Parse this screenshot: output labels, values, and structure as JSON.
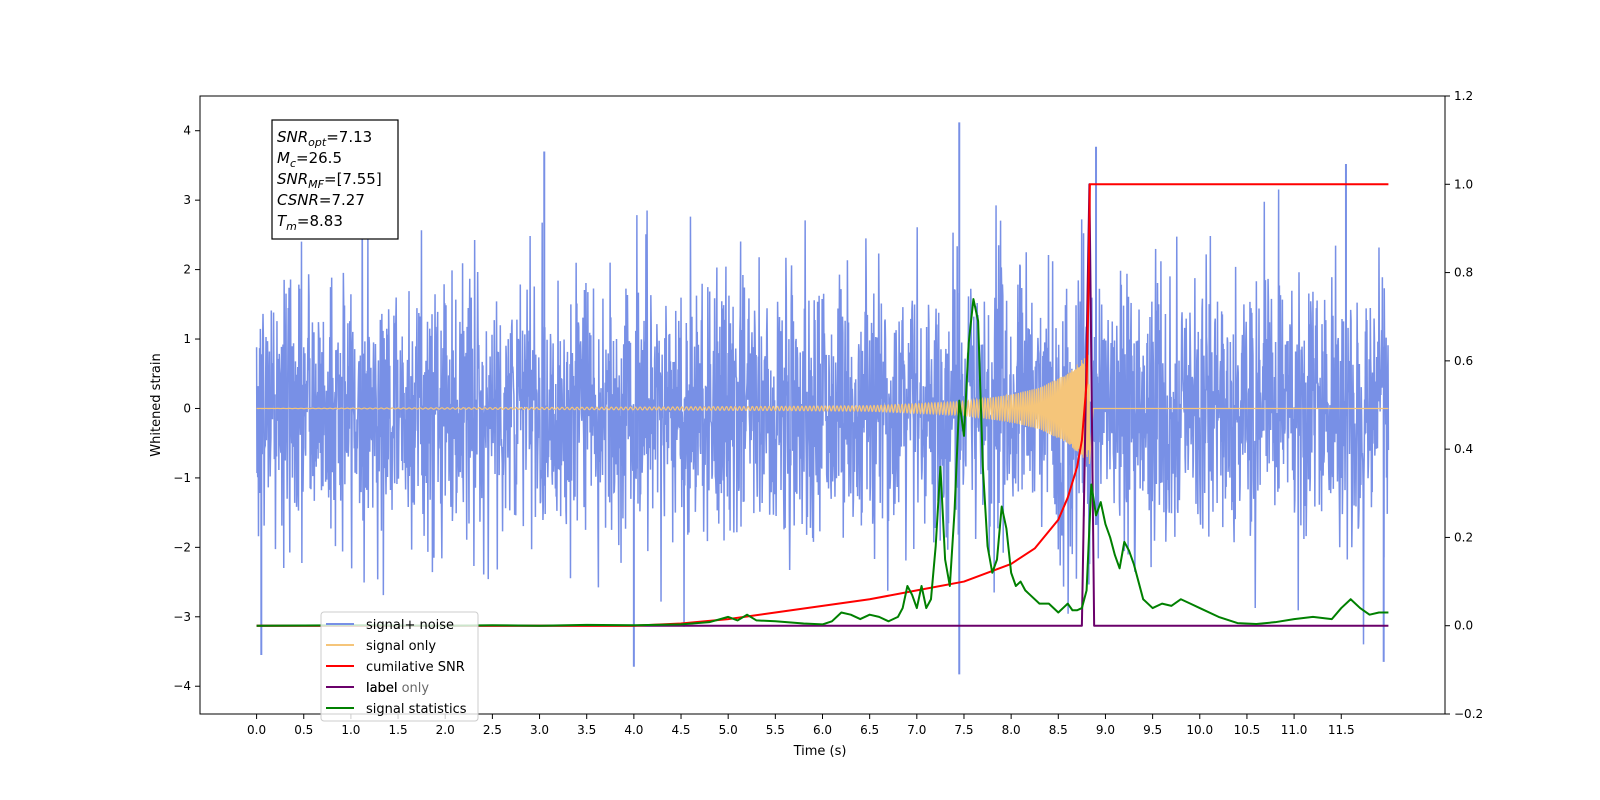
{
  "chart_data": {
    "type": "line",
    "xlabel": "Time (s)",
    "ylabel_left": "Whitened strain",
    "xlim": [
      -0.6,
      12.6
    ],
    "ylim_left": [
      -4.4,
      4.5
    ],
    "ylim_right": [
      -0.2,
      1.2
    ],
    "x_ticks": [
      0.0,
      0.5,
      1.0,
      1.5,
      2.0,
      2.5,
      3.0,
      3.5,
      4.0,
      4.5,
      5.0,
      5.5,
      6.0,
      6.5,
      7.0,
      7.5,
      8.0,
      8.5,
      9.0,
      9.5,
      10.0,
      10.5,
      11.0,
      11.5
    ],
    "x_tick_labels": [
      "0.0",
      "0.5",
      "1.0",
      "1.5",
      "2.0",
      "2.5",
      "3.0",
      "3.5",
      "4.0",
      "4.5",
      "5.0",
      "5.5",
      "6.0",
      "6.5",
      "7.0",
      "7.5",
      "8.0",
      "8.5",
      "9.0",
      "9.5",
      "10.0",
      "10.5",
      "11.0",
      "11.5"
    ],
    "y_ticks_left": [
      -4,
      -3,
      -2,
      -1,
      0,
      1,
      2,
      3,
      4
    ],
    "y_tick_labels_left": [
      "−4",
      "−3",
      "−2",
      "−1",
      "0",
      "1",
      "2",
      "3",
      "4"
    ],
    "y_ticks_right": [
      -0.2,
      0.0,
      0.2,
      0.4,
      0.6,
      0.8,
      1.0,
      1.2
    ],
    "y_tick_labels_right": [
      "−0.2",
      "0.0",
      "0.2",
      "0.4",
      "0.6",
      "0.8",
      "1.0",
      "1.2"
    ],
    "grid": false,
    "legend_placement": "lower-left",
    "annotation": {
      "lines": [
        {
          "main": "SNR",
          "sub": "opt",
          "rest": "=7.13"
        },
        {
          "main": "M",
          "sub": "c",
          "rest": "=26.5"
        },
        {
          "main": "SNR",
          "sub": "MF",
          "rest": "=[7.55]"
        },
        {
          "main": "CSNR",
          "sub": "",
          "rest": "=7.27"
        },
        {
          "main": "T",
          "sub": "m",
          "rest": "=8.83"
        }
      ]
    },
    "series": [
      {
        "name": "signal+ noise",
        "axis": "left",
        "color": "#7890e6",
        "noise_std": 0.95,
        "x_range": [
          0.0,
          12.0
        ],
        "visible_peaks": [
          {
            "x": 7.45,
            "y": 4.12
          },
          {
            "x": 8.9,
            "y": 3.77
          },
          {
            "x": 3.05,
            "y": 3.7
          },
          {
            "x": 11.55,
            "y": 3.52
          },
          {
            "x": 7.45,
            "y": -3.83
          },
          {
            "x": 4.0,
            "y": -3.72
          },
          {
            "x": 0.05,
            "y": -3.55
          },
          {
            "x": 11.95,
            "y": -3.65
          }
        ]
      },
      {
        "name": "signal only",
        "axis": "left",
        "color": "#f5c57a",
        "x_range": [
          0.0,
          12.0
        ],
        "merger_time": 8.83,
        "envelope": [
          [
            0.0,
            0.0
          ],
          [
            4.0,
            0.02
          ],
          [
            5.5,
            0.03
          ],
          [
            6.5,
            0.04
          ],
          [
            7.0,
            0.07
          ],
          [
            7.5,
            0.1
          ],
          [
            8.0,
            0.2
          ],
          [
            8.3,
            0.3
          ],
          [
            8.6,
            0.5
          ],
          [
            8.75,
            0.7
          ],
          [
            8.83,
            0.8
          ],
          [
            8.87,
            0.0
          ],
          [
            12.0,
            0.0
          ]
        ]
      },
      {
        "name": "cumilative SNR",
        "axis": "right",
        "color": "#ff0000",
        "points": [
          [
            0.0,
            0.0
          ],
          [
            4.0,
            0.0
          ],
          [
            4.5,
            0.005
          ],
          [
            5.0,
            0.015
          ],
          [
            5.5,
            0.03
          ],
          [
            6.0,
            0.045
          ],
          [
            6.5,
            0.06
          ],
          [
            7.0,
            0.08
          ],
          [
            7.5,
            0.1
          ],
          [
            8.0,
            0.14
          ],
          [
            8.25,
            0.175
          ],
          [
            8.5,
            0.24
          ],
          [
            8.6,
            0.29
          ],
          [
            8.7,
            0.36
          ],
          [
            8.75,
            0.42
          ],
          [
            8.8,
            0.55
          ],
          [
            8.82,
            0.75
          ],
          [
            8.835,
            1.0
          ],
          [
            12.0,
            1.0
          ]
        ]
      },
      {
        "name": "label",
        "axis": "right",
        "color": "#6a006a",
        "points": [
          [
            0.0,
            0.0
          ],
          [
            8.75,
            0.0
          ],
          [
            8.83,
            1.0
          ],
          [
            8.88,
            0.0
          ],
          [
            12.0,
            0.0
          ]
        ]
      },
      {
        "name": "signal statistics",
        "axis": "right",
        "color": "#008000",
        "points": [
          [
            0.0,
            0.0
          ],
          [
            1.0,
            0.001
          ],
          [
            2.0,
            0.0
          ],
          [
            2.5,
            0.001
          ],
          [
            3.0,
            0.0
          ],
          [
            3.5,
            0.002
          ],
          [
            4.0,
            0.001
          ],
          [
            4.5,
            0.003
          ],
          [
            4.8,
            0.008
          ],
          [
            5.0,
            0.02
          ],
          [
            5.1,
            0.012
          ],
          [
            5.2,
            0.025
          ],
          [
            5.3,
            0.012
          ],
          [
            5.5,
            0.01
          ],
          [
            5.8,
            0.005
          ],
          [
            6.0,
            0.003
          ],
          [
            6.1,
            0.01
          ],
          [
            6.2,
            0.03
          ],
          [
            6.3,
            0.025
          ],
          [
            6.4,
            0.015
          ],
          [
            6.5,
            0.025
          ],
          [
            6.6,
            0.02
          ],
          [
            6.7,
            0.01
          ],
          [
            6.8,
            0.02
          ],
          [
            6.85,
            0.04
          ],
          [
            6.9,
            0.09
          ],
          [
            6.95,
            0.07
          ],
          [
            7.0,
            0.04
          ],
          [
            7.05,
            0.09
          ],
          [
            7.1,
            0.04
          ],
          [
            7.15,
            0.06
          ],
          [
            7.2,
            0.18
          ],
          [
            7.25,
            0.36
          ],
          [
            7.3,
            0.15
          ],
          [
            7.35,
            0.09
          ],
          [
            7.4,
            0.26
          ],
          [
            7.45,
            0.51
          ],
          [
            7.5,
            0.43
          ],
          [
            7.55,
            0.64
          ],
          [
            7.6,
            0.74
          ],
          [
            7.65,
            0.69
          ],
          [
            7.7,
            0.36
          ],
          [
            7.75,
            0.18
          ],
          [
            7.8,
            0.12
          ],
          [
            7.85,
            0.15
          ],
          [
            7.9,
            0.27
          ],
          [
            7.95,
            0.22
          ],
          [
            8.0,
            0.12
          ],
          [
            8.05,
            0.09
          ],
          [
            8.1,
            0.1
          ],
          [
            8.15,
            0.08
          ],
          [
            8.2,
            0.07
          ],
          [
            8.3,
            0.05
          ],
          [
            8.4,
            0.05
          ],
          [
            8.5,
            0.03
          ],
          [
            8.55,
            0.04
          ],
          [
            8.6,
            0.05
          ],
          [
            8.65,
            0.035
          ],
          [
            8.7,
            0.035
          ],
          [
            8.75,
            0.04
          ],
          [
            8.8,
            0.08
          ],
          [
            8.85,
            0.32
          ],
          [
            8.9,
            0.25
          ],
          [
            8.95,
            0.28
          ],
          [
            9.0,
            0.23
          ],
          [
            9.05,
            0.2
          ],
          [
            9.1,
            0.16
          ],
          [
            9.15,
            0.13
          ],
          [
            9.2,
            0.19
          ],
          [
            9.25,
            0.17
          ],
          [
            9.3,
            0.14
          ],
          [
            9.35,
            0.1
          ],
          [
            9.4,
            0.06
          ],
          [
            9.5,
            0.04
          ],
          [
            9.6,
            0.05
          ],
          [
            9.7,
            0.045
          ],
          [
            9.8,
            0.06
          ],
          [
            9.9,
            0.05
          ],
          [
            10.0,
            0.04
          ],
          [
            10.2,
            0.02
          ],
          [
            10.4,
            0.006
          ],
          [
            10.6,
            0.004
          ],
          [
            10.8,
            0.008
          ],
          [
            11.0,
            0.015
          ],
          [
            11.2,
            0.02
          ],
          [
            11.4,
            0.015
          ],
          [
            11.5,
            0.04
          ],
          [
            11.6,
            0.06
          ],
          [
            11.7,
            0.04
          ],
          [
            11.8,
            0.025
          ],
          [
            11.9,
            0.03
          ],
          [
            12.0,
            0.03
          ]
        ]
      }
    ],
    "legend": [
      {
        "label": "signal+ noise",
        "color": "#7890e6"
      },
      {
        "label": "signal only",
        "color": "#f5c57a"
      },
      {
        "label": "cumilative SNR",
        "color": "#ff0000"
      },
      {
        "label": "label",
        "color": "#6a006a"
      },
      {
        "label": "label only",
        "color": "#6a006a"
      },
      {
        "label": "signal statistics",
        "color": "#008000"
      }
    ]
  }
}
